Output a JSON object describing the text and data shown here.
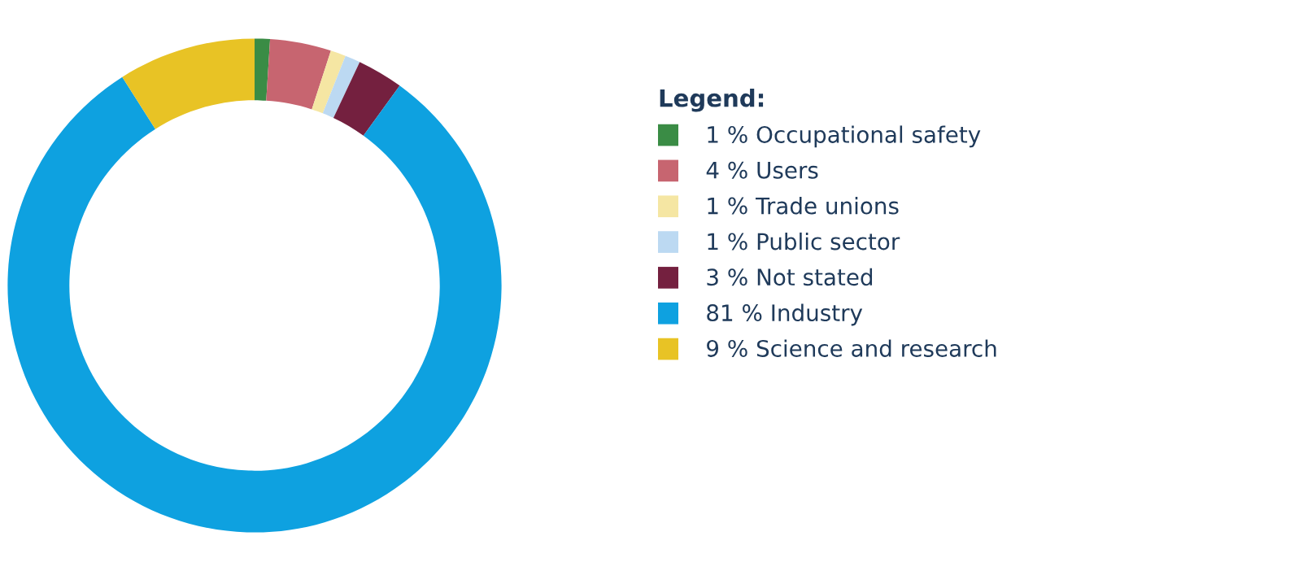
{
  "chart_data": {
    "type": "donut",
    "legend_title": "Legend:",
    "legend": "right",
    "categories": [
      "Occupational safety",
      "Users",
      "Trade unions",
      "Public sector",
      "Not stated",
      "Industry",
      "Science and research"
    ],
    "values": [
      1,
      4,
      1,
      1,
      3,
      81,
      9
    ],
    "value_labels": [
      "1 %",
      "4 %",
      "1 %",
      "1 %",
      "3 %",
      "81 %",
      "9 %"
    ],
    "colors": [
      "#3a8c45",
      "#c76570",
      "#f5e6a3",
      "#bcd9f2",
      "#74203f",
      "#0ea1e0",
      "#e8c325"
    ]
  }
}
